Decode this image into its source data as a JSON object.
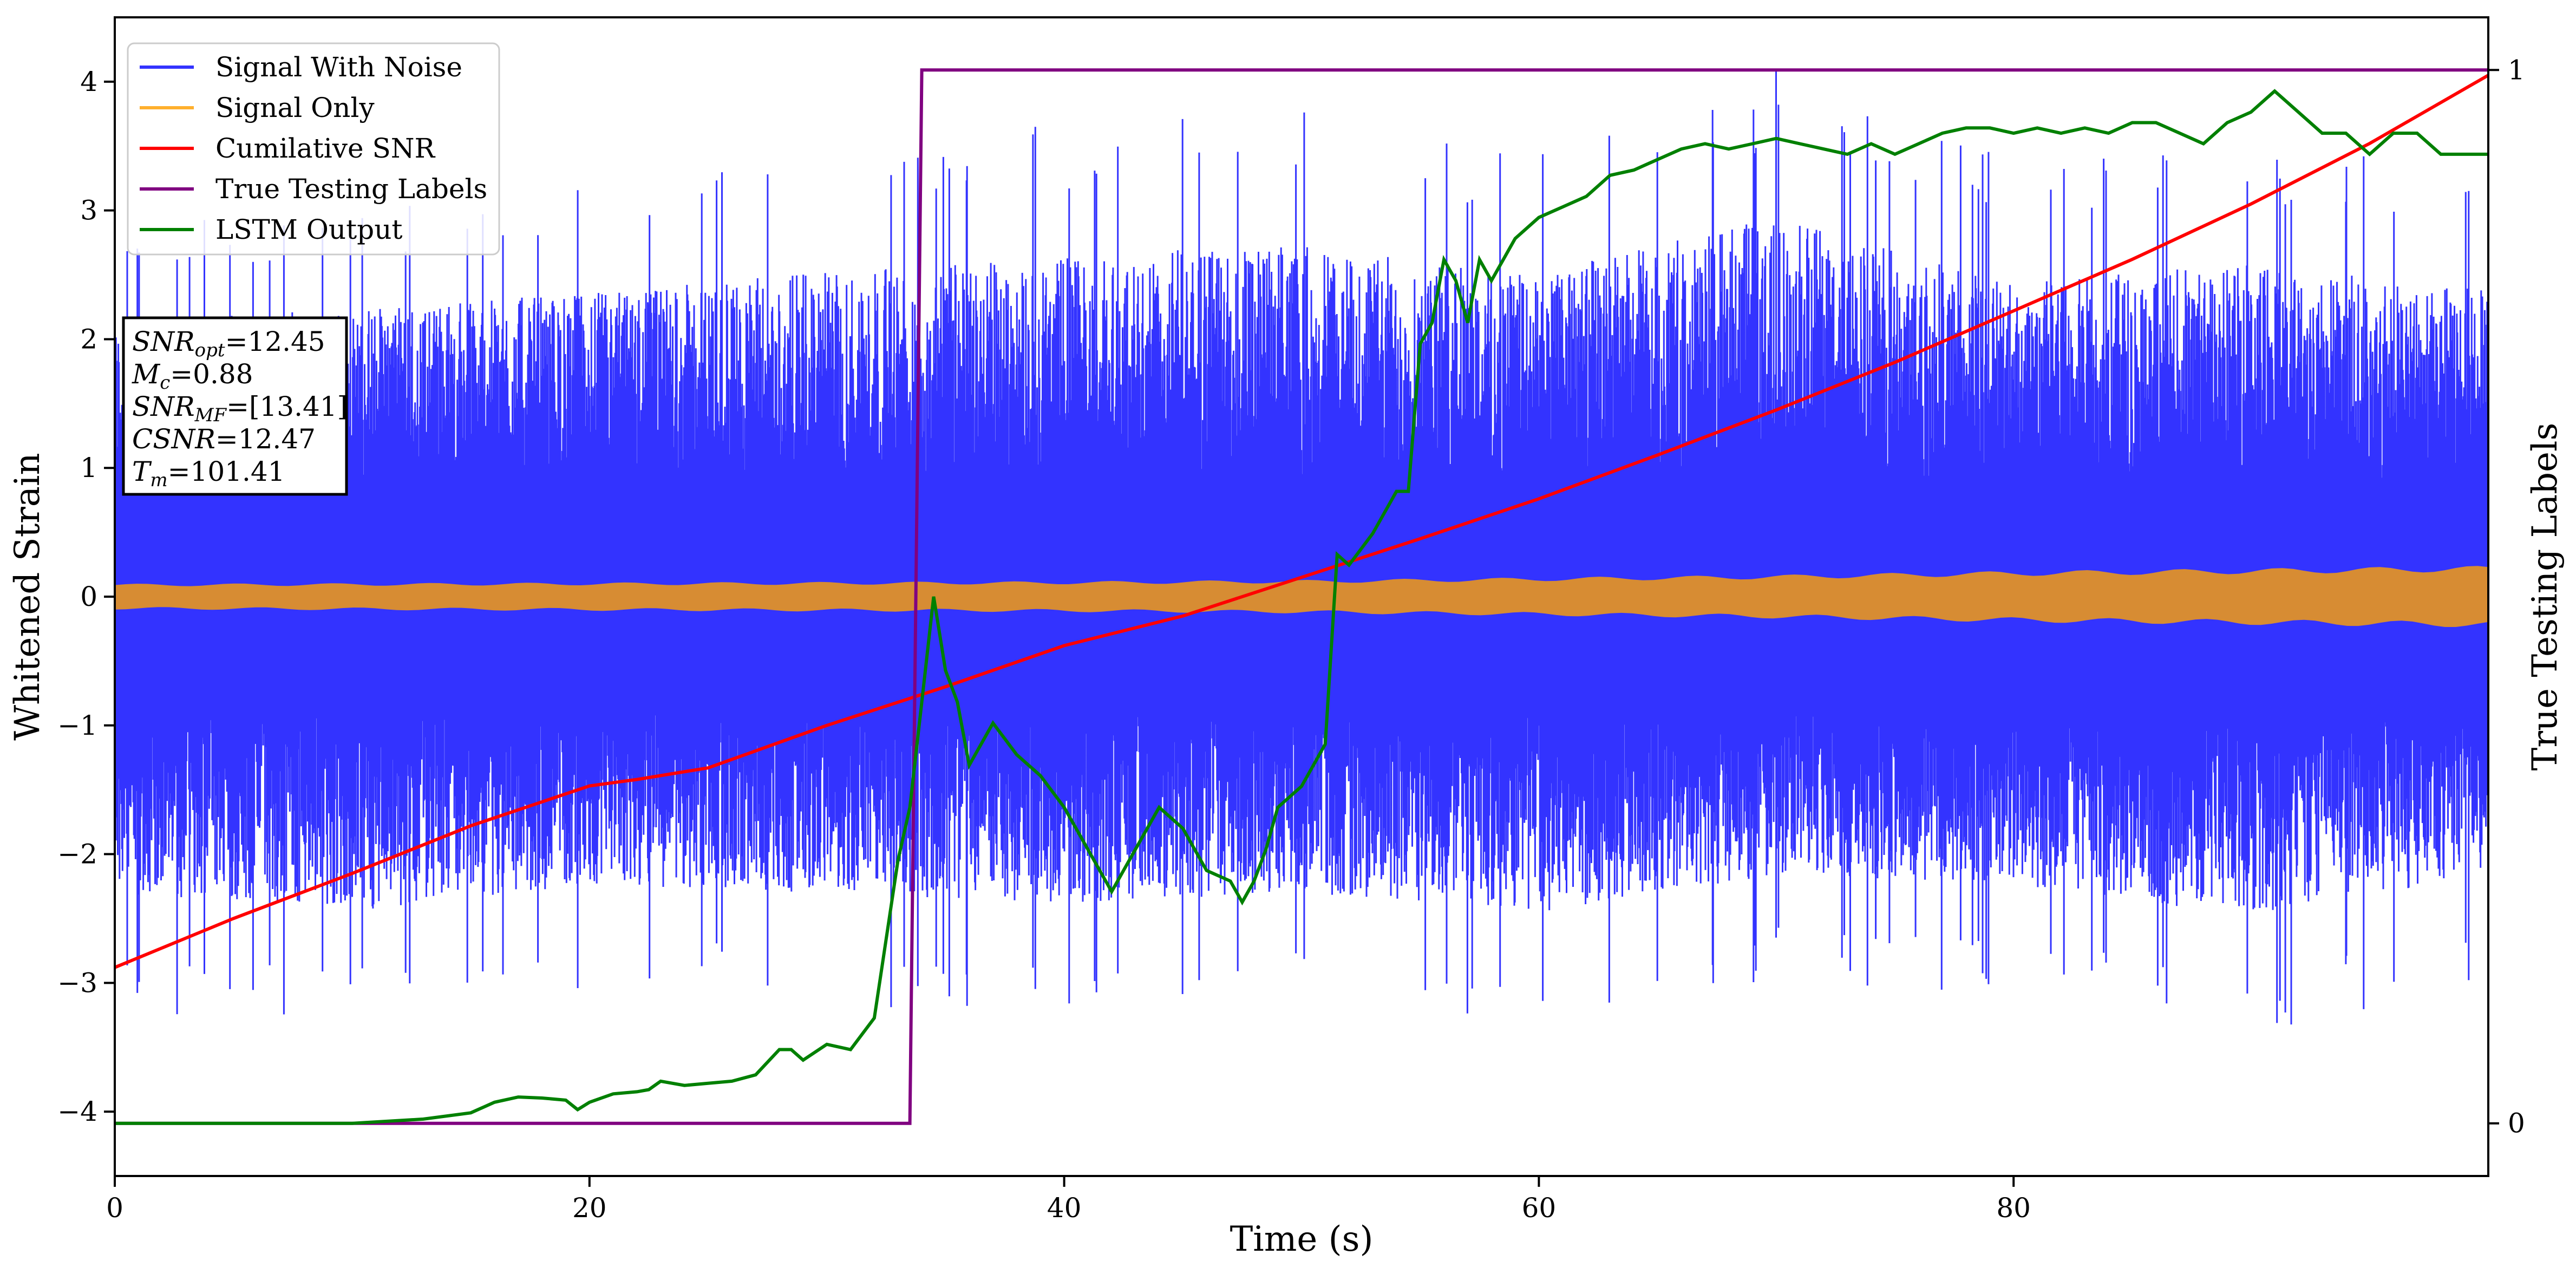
{
  "chart_data": {
    "type": "line",
    "xlabel": "Time (s)",
    "ylabel": "Whitened Strain",
    "y2label": "True Testing Labels",
    "xlim": [
      0,
      100
    ],
    "ylim": [
      -4.5,
      4.5
    ],
    "y2lim": [
      -0.05,
      1.05
    ],
    "x_ticks": [
      0,
      20,
      40,
      60,
      80
    ],
    "y_ticks": [
      -4,
      -3,
      -2,
      -1,
      0,
      1,
      2,
      3,
      4
    ],
    "y2_ticks": [
      0,
      1
    ],
    "grid": false,
    "legend_position": "top-left",
    "legend": [
      "Signal With Noise",
      "Signal Only",
      "Cumilative SNR",
      "True Testing Labels",
      "LSTM Output"
    ],
    "colors": {
      "signal_with_noise": "#3333ff",
      "signal_only": "#d78c33",
      "signal_only_legend": "#ffb02e",
      "cumulative_snr": "#ff0000",
      "true_labels": "#800080",
      "lstm_output": "#008000"
    },
    "annotation": [
      {
        "base": "SNR",
        "sub": "opt",
        "value": "=12.45"
      },
      {
        "base": "M",
        "sub": "c",
        "value": "=0.88"
      },
      {
        "base": "SNR",
        "sub": "MF",
        "value": "=[13.41]"
      },
      {
        "base": "CSNR",
        "sub": "",
        "value": "=12.47"
      },
      {
        "base": "T",
        "sub": "m",
        "value": "=101.41"
      }
    ],
    "series": [
      {
        "name": "Signal With Noise",
        "axis": "left",
        "envelope_x": [
          0,
          10,
          20,
          30,
          40,
          50,
          60,
          70,
          80,
          90,
          100
        ],
        "envelope_max": [
          3.0,
          3.1,
          3.3,
          3.5,
          3.7,
          3.8,
          3.5,
          4.1,
          3.4,
          3.6,
          3.3
        ],
        "envelope_min": [
          -3.2,
          -3.4,
          -3.1,
          -3.2,
          -3.3,
          -3.2,
          -3.4,
          -3.0,
          -3.1,
          -3.45,
          -3.0
        ]
      },
      {
        "name": "Signal Only",
        "axis": "left",
        "envelope_x": [
          0,
          20,
          40,
          50,
          60,
          70,
          80,
          90,
          100
        ],
        "amplitude": [
          0.1,
          0.11,
          0.12,
          0.13,
          0.15,
          0.17,
          0.2,
          0.22,
          0.24
        ]
      },
      {
        "name": "Cumilative SNR",
        "axis": "left",
        "x": [
          0,
          5,
          10,
          15,
          20,
          22,
          25,
          30,
          35,
          40,
          45,
          50,
          55,
          60,
          65,
          70,
          75,
          80,
          85,
          90,
          95,
          100
        ],
        "y": [
          -2.88,
          -2.5,
          -2.15,
          -1.78,
          -1.47,
          -1.42,
          -1.33,
          -1.0,
          -0.7,
          -0.38,
          -0.15,
          0.15,
          0.45,
          0.76,
          1.1,
          1.45,
          1.82,
          2.22,
          2.62,
          3.05,
          3.52,
          4.05
        ]
      },
      {
        "name": "True Testing Labels",
        "axis": "right",
        "x": [
          0,
          33.5,
          34,
          100
        ],
        "y": [
          0,
          0,
          1,
          1
        ]
      },
      {
        "name": "LSTM Output",
        "axis": "right",
        "x": [
          0,
          10,
          13,
          15,
          16,
          17,
          18,
          19,
          19.5,
          20,
          21,
          22,
          22.5,
          23,
          24,
          25,
          26,
          27,
          28,
          28.5,
          29,
          30,
          31,
          32,
          33,
          33.5,
          34,
          34.5,
          35,
          35.5,
          36,
          37,
          38,
          39,
          40,
          41,
          42,
          43,
          44,
          45,
          46,
          47,
          47.5,
          48,
          48.5,
          49,
          50,
          51,
          51.5,
          52,
          53,
          54,
          54.5,
          55,
          55.5,
          56,
          56.5,
          57,
          57.5,
          58,
          59,
          60,
          61,
          62,
          63,
          64,
          65,
          66,
          67,
          68,
          69,
          70,
          71,
          72,
          73,
          74,
          75,
          76,
          77,
          78,
          79,
          80,
          81,
          82,
          83,
          84,
          85,
          86,
          87,
          88,
          89,
          90,
          91,
          92,
          93,
          94,
          95,
          96,
          97,
          98,
          99,
          100
        ],
        "y": [
          0,
          0,
          0.004,
          0.01,
          0.02,
          0.025,
          0.024,
          0.022,
          0.013,
          0.02,
          0.028,
          0.03,
          0.032,
          0.04,
          0.036,
          0.038,
          0.04,
          0.046,
          0.07,
          0.07,
          0.06,
          0.075,
          0.07,
          0.1,
          0.25,
          0.3,
          0.4,
          0.5,
          0.43,
          0.4,
          0.34,
          0.38,
          0.35,
          0.33,
          0.3,
          0.26,
          0.22,
          0.26,
          0.3,
          0.28,
          0.24,
          0.23,
          0.21,
          0.23,
          0.26,
          0.3,
          0.32,
          0.36,
          0.54,
          0.53,
          0.56,
          0.6,
          0.6,
          0.74,
          0.76,
          0.82,
          0.8,
          0.76,
          0.82,
          0.8,
          0.84,
          0.86,
          0.87,
          0.88,
          0.9,
          0.905,
          0.915,
          0.925,
          0.93,
          0.925,
          0.93,
          0.935,
          0.93,
          0.925,
          0.92,
          0.93,
          0.92,
          0.93,
          0.94,
          0.945,
          0.945,
          0.94,
          0.945,
          0.94,
          0.945,
          0.94,
          0.95,
          0.95,
          0.94,
          0.93,
          0.95,
          0.96,
          0.98,
          0.96,
          0.94,
          0.94,
          0.92,
          0.94,
          0.94,
          0.92,
          0.92,
          0.92
        ]
      }
    ]
  }
}
